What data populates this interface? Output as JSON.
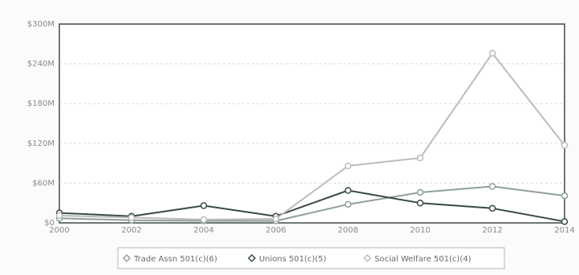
{
  "chart_data": {
    "type": "line",
    "x": [
      2000,
      2002,
      2004,
      2006,
      2008,
      2010,
      2012,
      2014
    ],
    "ylim": [
      0,
      300
    ],
    "yticks": [
      "$0",
      "$60M",
      "$120M",
      "$180M",
      "$240M",
      "$300M"
    ],
    "xticks": [
      "2000",
      "2002",
      "2004",
      "2006",
      "2008",
      "2010",
      "2012",
      "2014"
    ],
    "grid": true,
    "legend_position": "bottom",
    "series": [
      {
        "name": "Trade Assn 501(c)(6)",
        "color": "#8fa098",
        "values": [
          7,
          4,
          3,
          3,
          28,
          46,
          55,
          41
        ]
      },
      {
        "name": "Unions 501(c)(5)",
        "color": "#3a4a44",
        "values": [
          15,
          10,
          26,
          10,
          49,
          30,
          22,
          2
        ]
      },
      {
        "name": "Social Welfare 501(c)(4)",
        "color": "#bcbcbc",
        "values": [
          11,
          8,
          5,
          6,
          86,
          98,
          256,
          117
        ]
      }
    ]
  }
}
